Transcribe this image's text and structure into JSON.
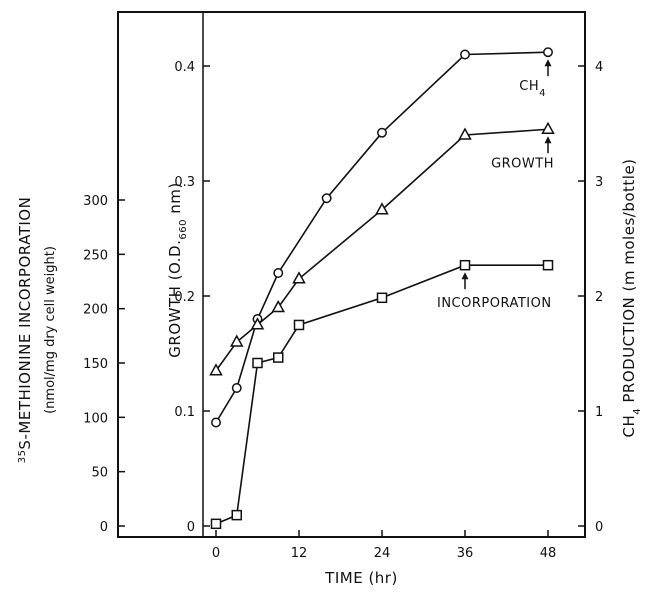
{
  "chart_data": {
    "type": "line",
    "x": [
      0,
      3,
      6,
      9,
      12,
      24,
      36,
      48
    ],
    "x_axis": {
      "label": "TIME (hr)",
      "ticks": [
        0,
        12,
        24,
        36,
        48
      ],
      "tick_labels": [
        "0",
        "12",
        "24",
        "36",
        "48"
      ],
      "range": [
        -2,
        52
      ]
    },
    "left_axis": {
      "label_main": "35S-METHIONINE INCORPORATION",
      "label_sup": "35",
      "label_rest": "S-METHIONINE INCORPORATION",
      "label_units": "(nmol/mg dry cell weight)",
      "ticks": [
        0,
        50,
        100,
        150,
        200,
        250,
        300
      ],
      "tick_labels": [
        "0",
        "50",
        "100",
        "150",
        "200",
        "250",
        "300"
      ],
      "range": [
        0,
        500
      ]
    },
    "growth_axis": {
      "label": "GROWTH (O.D.660 nm)",
      "label_pre": "GROWTH (O.D.",
      "label_sub": "660",
      "label_post": " nm)",
      "ticks": [
        0,
        0.1,
        0.2,
        0.3,
        0.4
      ],
      "tick_labels": [
        "0",
        "0.1",
        "0.2",
        "0.3",
        "0.4"
      ],
      "range": [
        0,
        0.5
      ]
    },
    "right_axis": {
      "label": "CH4 PRODUCTION (m moles/bottle)",
      "label_pre": "CH",
      "label_sub": "4",
      "label_post": " PRODUCTION (m moles/bottle)",
      "ticks": [
        0,
        1,
        2,
        3,
        4
      ],
      "tick_labels": [
        "0",
        "1",
        "2",
        "3",
        "4"
      ],
      "range": [
        0,
        5
      ]
    },
    "series": [
      {
        "name": "CH4",
        "name_pre": "CH",
        "name_sub": "4",
        "marker": "circle",
        "axis": "right",
        "x": [
          0,
          3,
          6,
          9,
          16,
          24,
          36,
          48
        ],
        "values": [
          0.9,
          1.2,
          1.8,
          2.2,
          2.85,
          3.42,
          4.1,
          4.12
        ]
      },
      {
        "name": "GROWTH",
        "marker": "triangle",
        "axis": "growth",
        "x": [
          0,
          3,
          6,
          9,
          12,
          24,
          36,
          48
        ],
        "values": [
          0.135,
          0.16,
          0.175,
          0.19,
          0.215,
          0.275,
          0.34,
          0.345
        ]
      },
      {
        "name": "INCORPORATION",
        "marker": "square",
        "axis": "left",
        "x": [
          0,
          3,
          6,
          9,
          12,
          24,
          36,
          48
        ],
        "values": [
          2,
          10,
          150,
          155,
          185,
          210,
          240,
          240
        ]
      }
    ],
    "grid": false,
    "legend": "none"
  }
}
